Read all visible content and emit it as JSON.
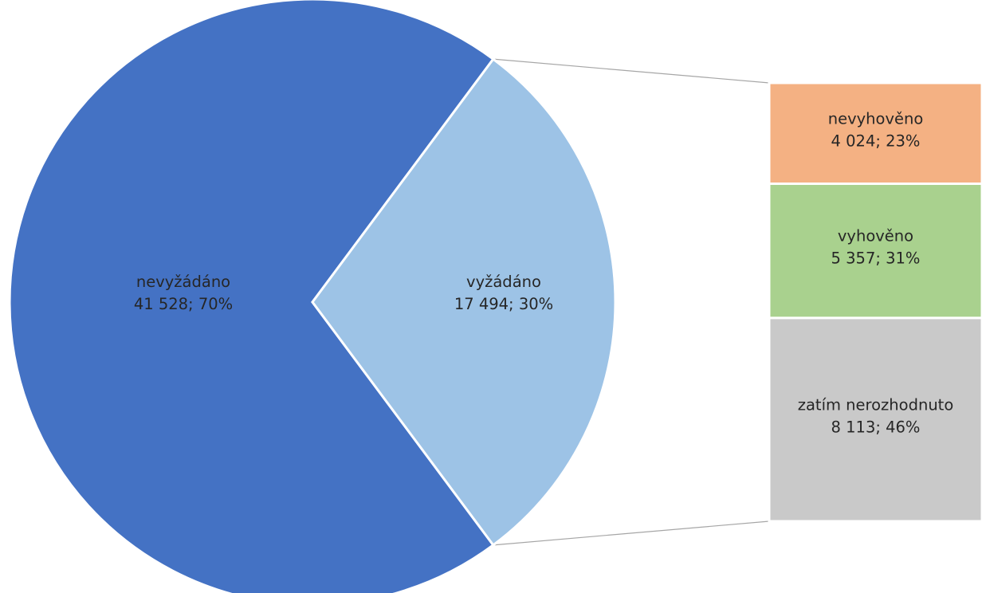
{
  "chart_data": {
    "type": "bar",
    "title": "",
    "pie": {
      "slices": [
        {
          "name": "nevyžádáno",
          "value": 41528,
          "label_value": "41 528; 70%",
          "color": "#4472C4"
        },
        {
          "name": "vyžádáno",
          "value": 17494,
          "label_value": "17 494; 30%",
          "color": "#9DC3E6"
        }
      ]
    },
    "breakdown": {
      "parent": "vyžádáno",
      "segments": [
        {
          "name": "nevyhověno",
          "value": 4024,
          "label_value": "4 024; 23%",
          "color": "#F4B183"
        },
        {
          "name": "vyhověno",
          "value": 5357,
          "label_value": "5 357; 31%",
          "color": "#A9D18E"
        },
        {
          "name": "zatím nerozhodnuto",
          "value": 8113,
          "label_value": "8 113; 46%",
          "color": "#C9C9C9"
        }
      ]
    }
  }
}
